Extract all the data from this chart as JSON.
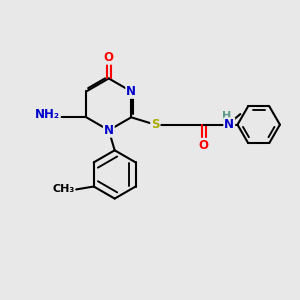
{
  "bg_color": "#e8e8e8",
  "bond_color": "#000000",
  "bond_width": 1.5,
  "atom_colors": {
    "C": "#000000",
    "N": "#0000cc",
    "O": "#ff0000",
    "S": "#aaaa00",
    "H": "#5a9a8a"
  },
  "font_size": 8.5
}
